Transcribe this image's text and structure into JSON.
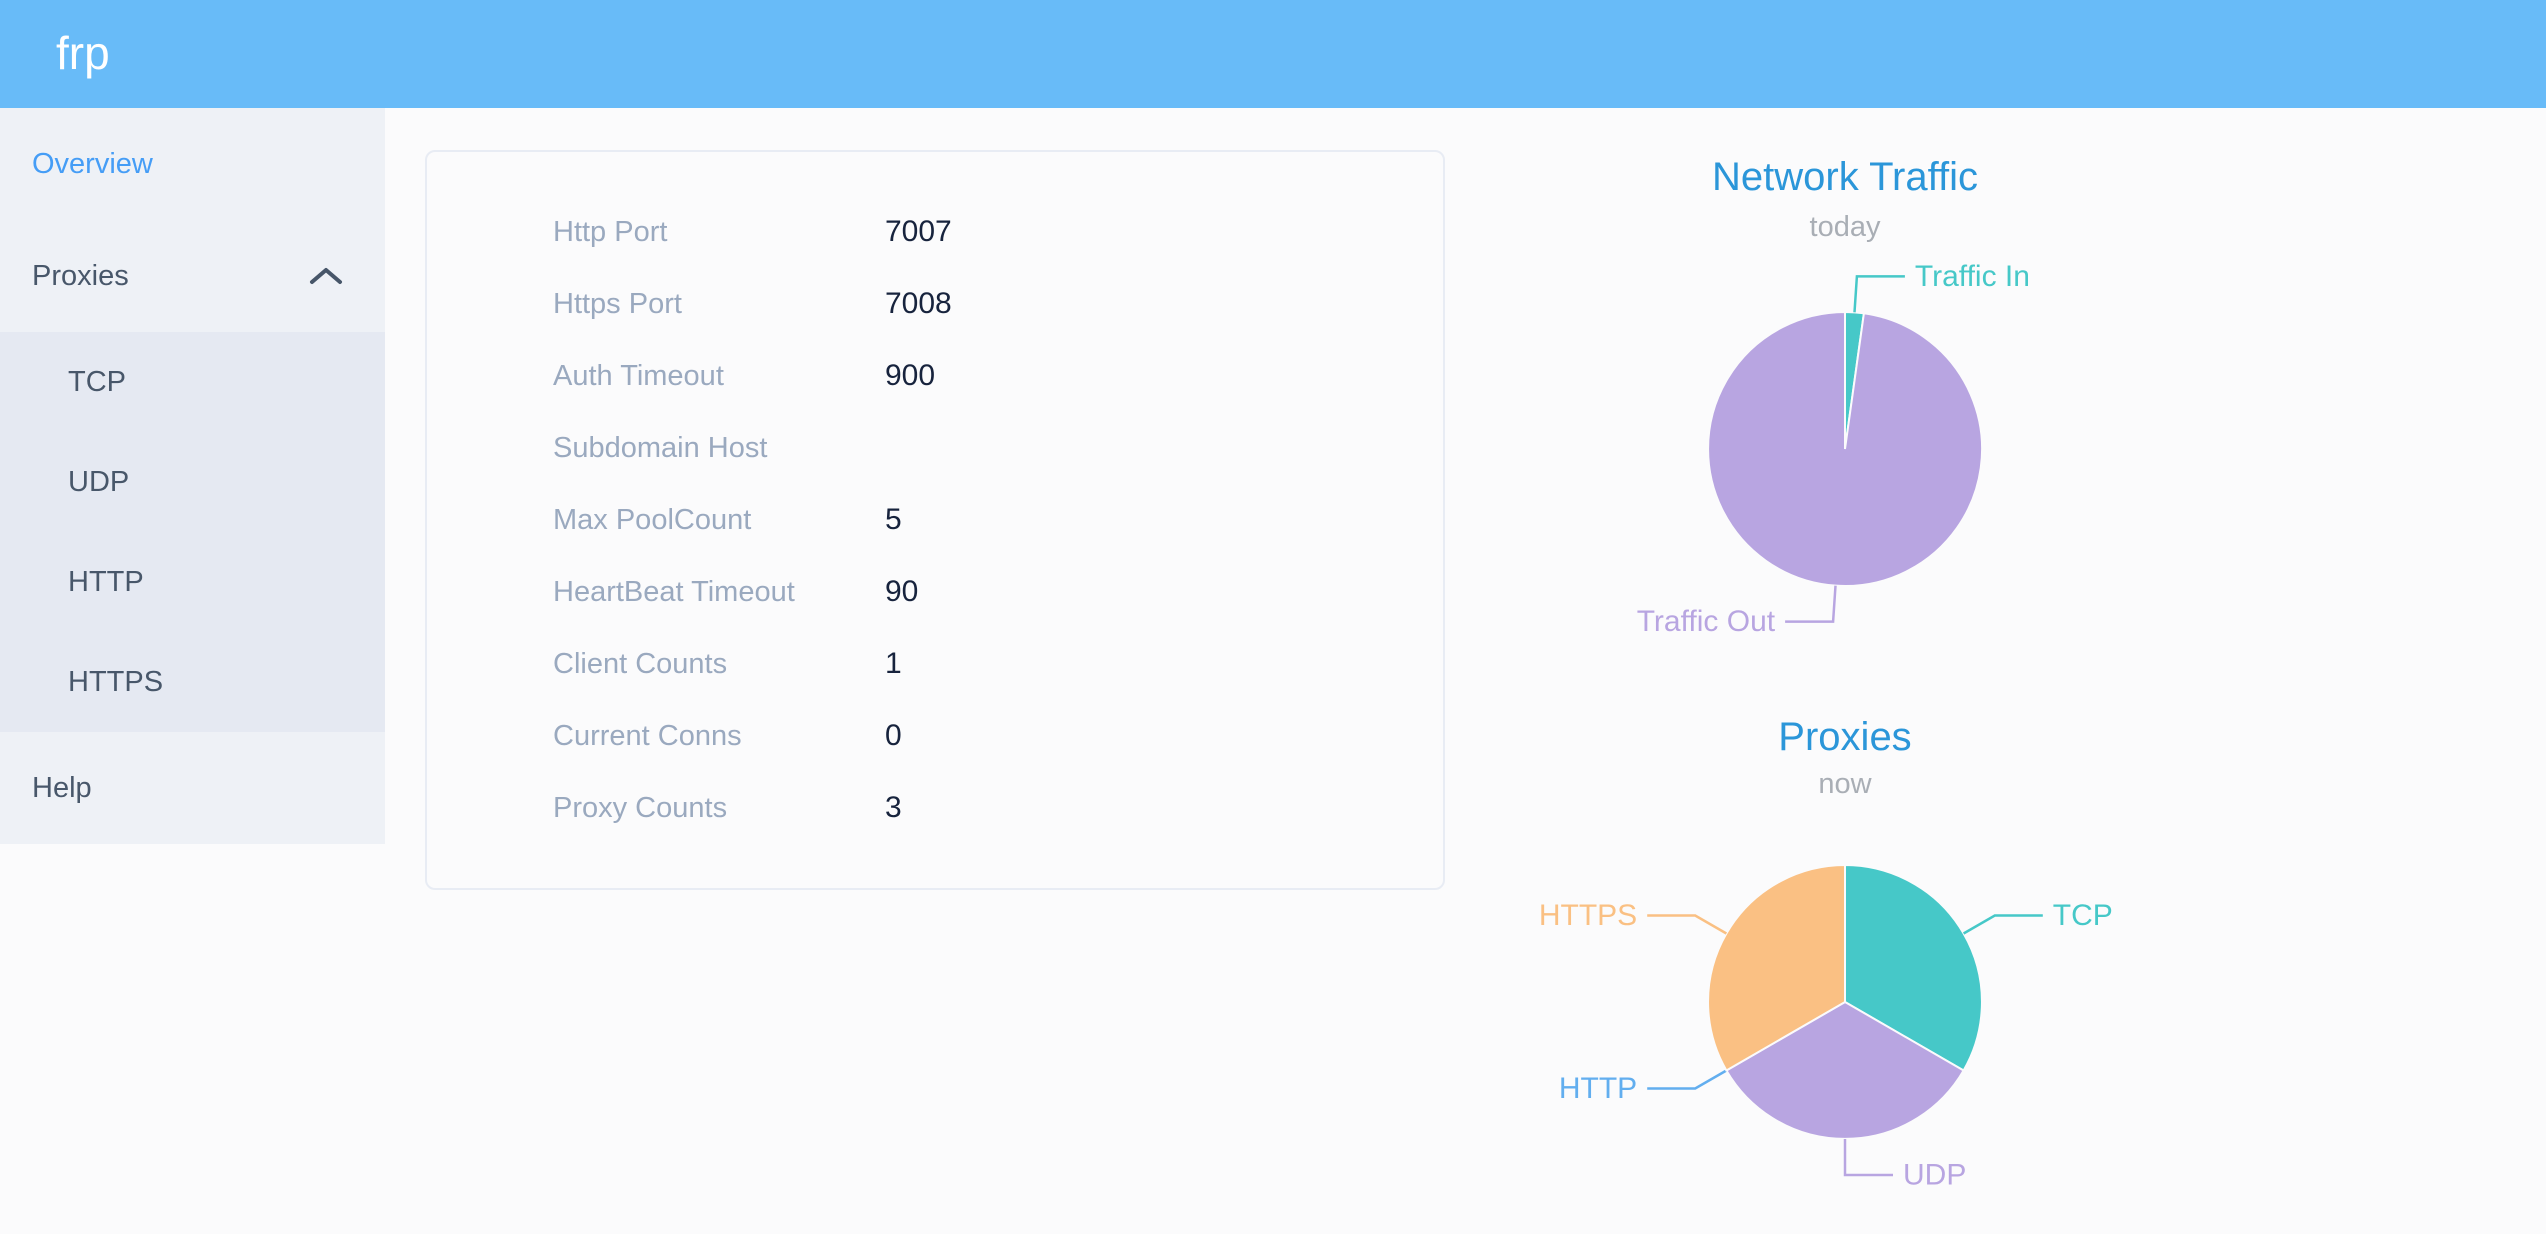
{
  "app": {
    "title": "frp"
  },
  "sidebar": {
    "items": [
      {
        "label": "Overview",
        "active": true
      },
      {
        "label": "Proxies",
        "expanded": true,
        "children": [
          "TCP",
          "UDP",
          "HTTP",
          "HTTPS"
        ]
      },
      {
        "label": "Help",
        "active": false
      }
    ]
  },
  "overview": {
    "rows": [
      {
        "label": "Http Port",
        "value": "7007"
      },
      {
        "label": "Https Port",
        "value": "7008"
      },
      {
        "label": "Auth Timeout",
        "value": "900"
      },
      {
        "label": "Subdomain Host",
        "value": ""
      },
      {
        "label": "Max PoolCount",
        "value": "5"
      },
      {
        "label": "HeartBeat Timeout",
        "value": "90"
      },
      {
        "label": "Client Counts",
        "value": "1"
      },
      {
        "label": "Current Conns",
        "value": "0"
      },
      {
        "label": "Proxy Counts",
        "value": "3"
      }
    ]
  },
  "chart_data": [
    {
      "type": "pie",
      "title": "Network Traffic",
      "subtitle": "today",
      "legend_position": "none",
      "unit": "percent (estimated from slice angles)",
      "slices": [
        {
          "name": "Traffic In",
          "value": 2.2,
          "color": "#46c8c8"
        },
        {
          "name": "Traffic Out",
          "value": 97.8,
          "color": "#b8a5e1"
        }
      ]
    },
    {
      "type": "pie",
      "title": "Proxies",
      "subtitle": "now",
      "legend_position": "none",
      "unit": "proxy count",
      "slices": [
        {
          "name": "TCP",
          "value": 1,
          "color": "#46c8c8"
        },
        {
          "name": "UDP",
          "value": 1,
          "color": "#b8a5e1"
        },
        {
          "name": "HTTP",
          "value": 0,
          "color": "#62aeef"
        },
        {
          "name": "HTTPS",
          "value": 1,
          "color": "#fac083"
        }
      ]
    }
  ],
  "colors": {
    "header": "#68bbf8",
    "sidebar_bg": "#eef1f6",
    "submenu_bg": "#e5e9f2",
    "menu_text": "#48576a",
    "active_item": "#459df6",
    "card_label": "#9aa9bf",
    "chart_title_blue": "#2b96d9"
  }
}
